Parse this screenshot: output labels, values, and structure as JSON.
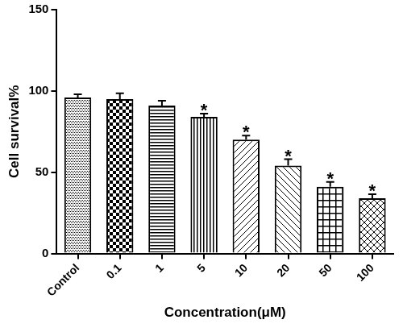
{
  "chart_data": {
    "type": "bar",
    "x_label": "Concentration(μM)",
    "y_label": "Cell survival%",
    "categories": [
      "Control",
      "0.1",
      "1",
      "5",
      "10",
      "20",
      "50",
      "100"
    ],
    "values": [
      96,
      95,
      91,
      84,
      70,
      54,
      41,
      34
    ],
    "errors": [
      2,
      3.5,
      3,
      2,
      2.5,
      4,
      3,
      2.5
    ],
    "color": "#000000",
    "ylim": [
      0,
      150
    ],
    "yticks": [
      0,
      50,
      100,
      150
    ],
    "grid": false,
    "annotations": [
      {
        "category": "5",
        "text": "*"
      },
      {
        "category": "10",
        "text": "*"
      },
      {
        "category": "20",
        "text": "*"
      },
      {
        "category": "50",
        "text": "*"
      },
      {
        "category": "100",
        "text": "*"
      }
    ]
  }
}
